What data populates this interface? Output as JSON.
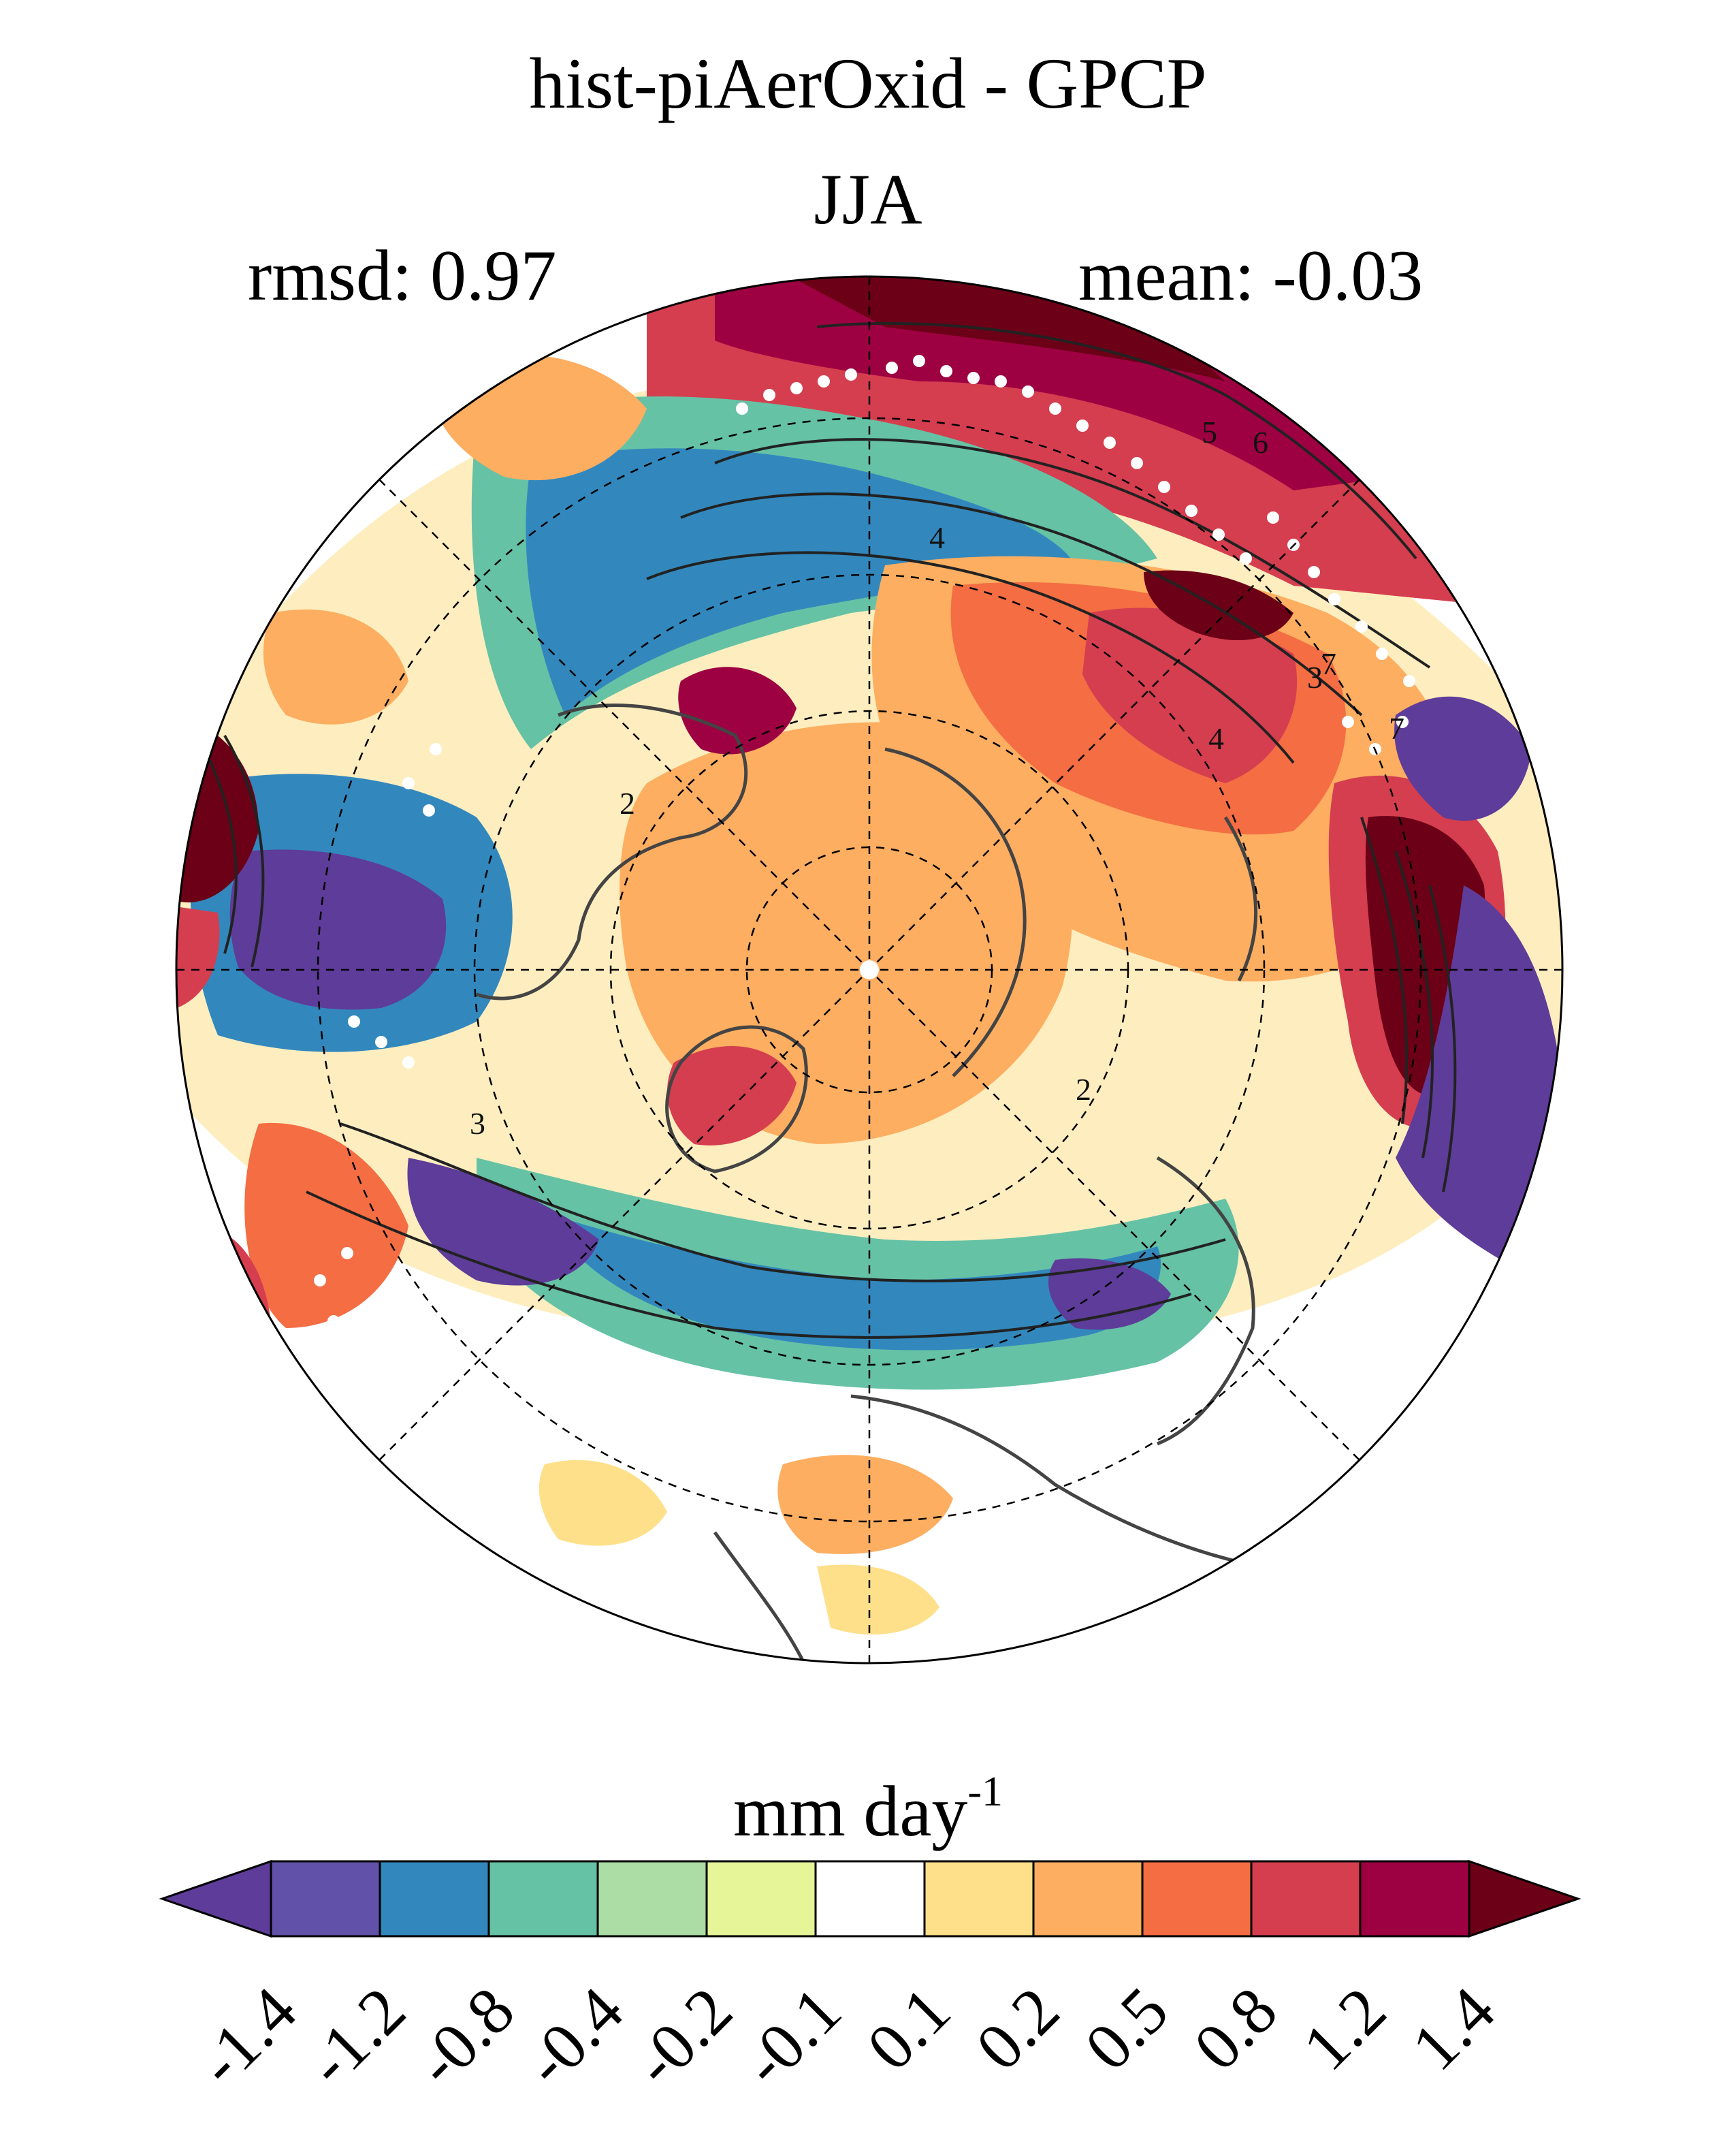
{
  "title": "hist-piAerOxid - GPCP",
  "season": "JJA",
  "stats": {
    "rmsd": "rmsd: 0.97",
    "mean": "mean: -0.03"
  },
  "colorbar": {
    "units_text": "mm day",
    "units_exp": "-1",
    "ticks": [
      "-1.4",
      "-1.2",
      "-0.8",
      "-0.4",
      "-0.2",
      "-0.1",
      "0.1",
      "0.2",
      "0.5",
      "0.8",
      "1.2",
      "1.4"
    ],
    "colors": [
      "#5e3c99",
      "#6251a8",
      "#3288bd",
      "#66c2a5",
      "#abdda4",
      "#e6f598",
      "#ffffff",
      "#fee08b",
      "#fdae61",
      "#f46d43",
      "#d53e4f",
      "#9e0142",
      "#6b0016"
    ]
  },
  "contour_labels": [
    "2",
    "3",
    "4",
    "5",
    "6",
    "7"
  ]
}
